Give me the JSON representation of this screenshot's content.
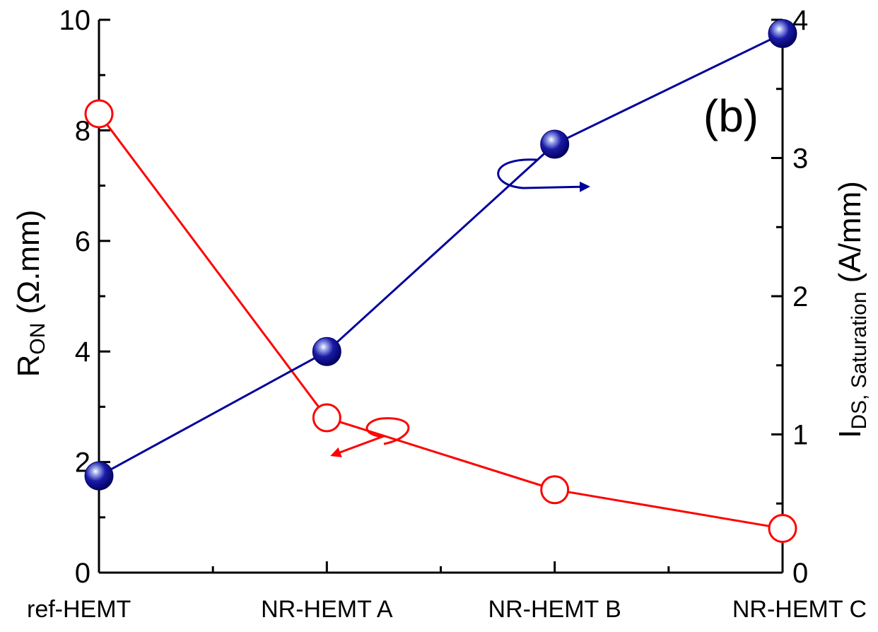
{
  "chart_data": {
    "type": "line",
    "panel_label": "(b)",
    "categories": [
      "ref-HEMT",
      "NR-HEMT A",
      "NR-HEMT B",
      "NR-HEMT C"
    ],
    "left_axis": {
      "label_main": "R",
      "label_sub": "ON",
      "label_unit": " (Ω.mm)",
      "ylim": [
        0,
        10
      ],
      "ticks": [
        "0",
        "2",
        "4",
        "6",
        "8",
        "10"
      ]
    },
    "right_axis": {
      "label_main": "I",
      "label_sub": "DS, Saturation",
      "label_unit": " (A/mm)",
      "ylim": [
        0,
        4
      ],
      "ticks": [
        "0",
        "1",
        "2",
        "3",
        "4"
      ]
    },
    "series": [
      {
        "axis": "left",
        "color": "#ff0000",
        "marker": "open-circle",
        "values": [
          8.3,
          2.8,
          1.5,
          0.8
        ]
      },
      {
        "axis": "right",
        "color": "#000099",
        "marker": "filled-sphere",
        "values": [
          0.7,
          1.6,
          3.1,
          3.9
        ]
      }
    ]
  }
}
